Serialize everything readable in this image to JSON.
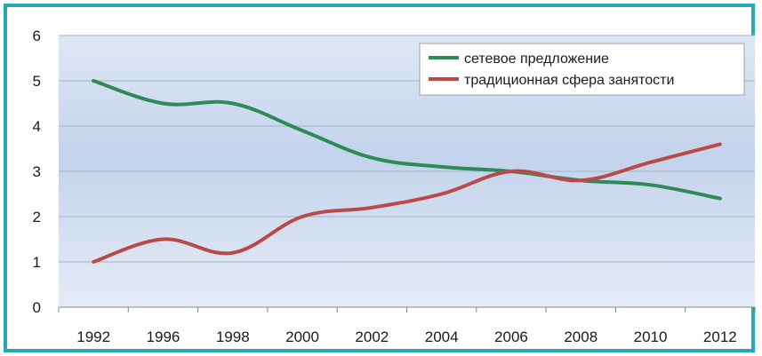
{
  "chart_data": {
    "type": "line",
    "x": [
      1992,
      1996,
      1998,
      2000,
      2002,
      2004,
      2006,
      2008,
      2010,
      2012
    ],
    "x_tick_labels": [
      "1992",
      "1996",
      "1998",
      "2000",
      "2002",
      "2004",
      "2006",
      "2008",
      "2010",
      "2012"
    ],
    "y_tick_labels": [
      "0",
      "1",
      "2",
      "3",
      "4",
      "5",
      "6"
    ],
    "ylim": [
      0,
      6
    ],
    "grid": "horizontal",
    "legend_position": "top-right",
    "series": [
      {
        "name": "сетевое предложение",
        "color": "#2e8b57",
        "values": [
          5.0,
          4.5,
          4.5,
          3.9,
          3.3,
          3.1,
          3.0,
          2.8,
          2.7,
          2.4
        ]
      },
      {
        "name": "традиционная сфера занятости",
        "color": "#b94a48",
        "values": [
          1.0,
          1.5,
          1.2,
          2.0,
          2.2,
          2.5,
          3.0,
          2.8,
          3.2,
          3.6
        ]
      }
    ]
  }
}
